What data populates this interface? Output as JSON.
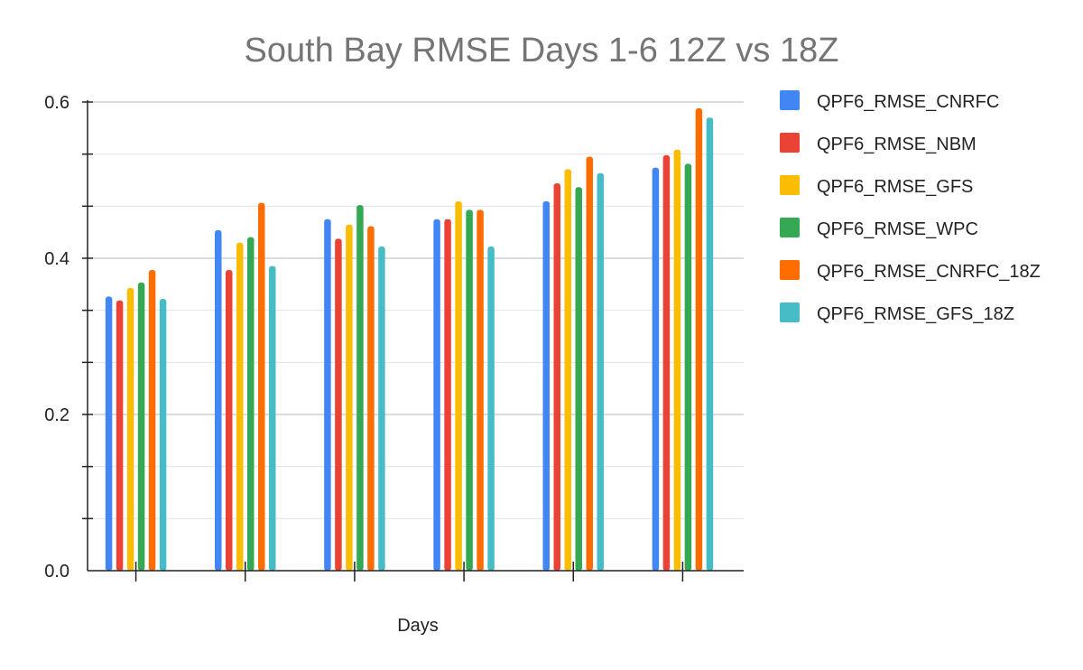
{
  "chart_data": {
    "type": "bar",
    "title": "South Bay RMSE Days 1-6 12Z vs 18Z",
    "xlabel": "Days",
    "ylabel": "",
    "ylim": [
      0,
      0.6
    ],
    "y_ticks": [
      "0.0",
      "0.2",
      "0.4",
      "0.6"
    ],
    "grid": true,
    "legend_position": "right",
    "categories": [
      "",
      "",
      "",
      "",
      "",
      ""
    ],
    "series": [
      {
        "name": "QPF6_RMSE_CNRFC",
        "color": "#4285f4",
        "values": [
          0.351,
          0.436,
          0.45,
          0.45,
          0.473,
          0.516
        ]
      },
      {
        "name": "QPF6_RMSE_NBM",
        "color": "#ea4335",
        "values": [
          0.346,
          0.385,
          0.425,
          0.45,
          0.496,
          0.532
        ]
      },
      {
        "name": "QPF6_RMSE_GFS",
        "color": "#fbbc04",
        "values": [
          0.362,
          0.42,
          0.443,
          0.473,
          0.514,
          0.539
        ]
      },
      {
        "name": "QPF6_RMSE_WPC",
        "color": "#34a853",
        "values": [
          0.369,
          0.427,
          0.468,
          0.462,
          0.491,
          0.521
        ]
      },
      {
        "name": "QPF6_RMSE_CNRFC_18Z",
        "color": "#ff6d01",
        "values": [
          0.385,
          0.471,
          0.441,
          0.462,
          0.53,
          0.592
        ]
      },
      {
        "name": "QPF6_RMSE_GFS_18Z",
        "color": "#46bdc6",
        "values": [
          0.348,
          0.39,
          0.415,
          0.415,
          0.509,
          0.58
        ]
      }
    ]
  }
}
